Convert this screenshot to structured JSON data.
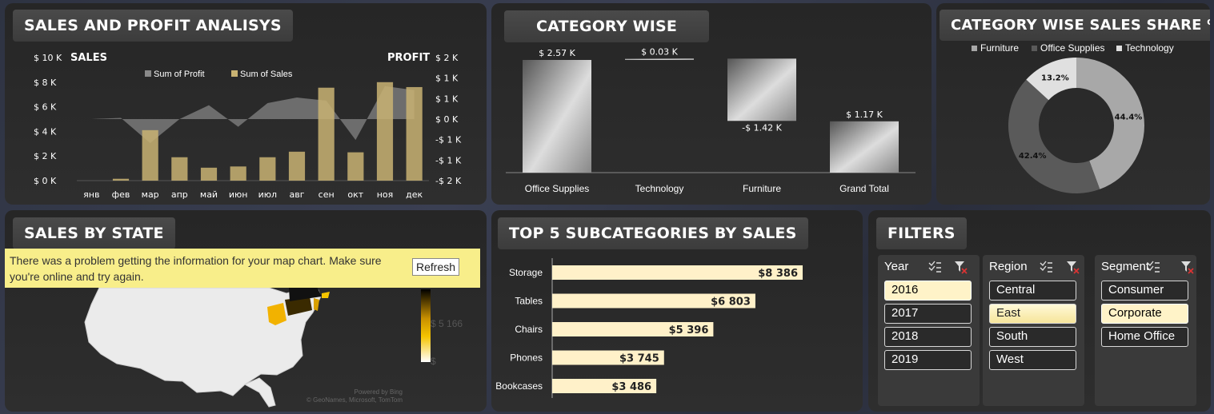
{
  "panels": {
    "sales_profit": {
      "title": "SALES AND PROFIT ANALISYS",
      "left_label": "SALES",
      "right_label": "PROFIT",
      "legend_profit": "Sum of Profit",
      "legend_sales": "Sum of Sales"
    },
    "category": {
      "title": "CATEGORY WISE",
      "labels": [
        "$ 2.57  K",
        "$ 0.03  K",
        "-$ 1.42  K",
        "$ 1.17  K"
      ]
    },
    "share": {
      "title": "CATEGORY WISE SALES SHARE %",
      "pct_labels": [
        "44.4%",
        "42.4%",
        "13.2%"
      ]
    },
    "state": {
      "title": "SALES BY STATE",
      "error_msg": "There was a problem getting the information for your map chart. Make sure you're online and try again.",
      "refresh_label": "Refresh",
      "legend_mid": "$ 5 166",
      "legend_low": "$",
      "powered_by": "Powered by Bing",
      "attribution": "© GeoNames, Microsoft, TomTom"
    },
    "top5": {
      "title": "TOP 5 SUBCATEGORIES BY SALES",
      "value_labels": [
        "$8 386",
        "$6 803",
        "$5 396",
        "$3 745",
        "$3 486"
      ]
    },
    "filters": {
      "title": "FILTERS",
      "year": {
        "header": "Year",
        "items": [
          "2016",
          "2017",
          "2018",
          "2019"
        ],
        "selected": "2016"
      },
      "region": {
        "header": "Region",
        "items": [
          "Central",
          "East",
          "South",
          "West"
        ],
        "selected": "East"
      },
      "segment": {
        "header": "Segment",
        "items": [
          "Consumer",
          "Corporate",
          "Home Office"
        ],
        "selected": "Corporate"
      }
    }
  },
  "chart_data": [
    {
      "type": "bar",
      "title": "SALES AND PROFIT ANALISYS",
      "categories": [
        "янв",
        "фев",
        "мар",
        "апр",
        "май",
        "июн",
        "июл",
        "авг",
        "сен",
        "окт",
        "ноя",
        "дек"
      ],
      "series": [
        {
          "name": "Sum of Sales",
          "type": "bar",
          "axis": "left",
          "values": [
            0,
            150,
            4100,
            1900,
            1050,
            1150,
            1900,
            2350,
            7550,
            2300,
            8000,
            7600
          ]
        },
        {
          "name": "Sum of Profit",
          "type": "area",
          "axis": "right",
          "values": [
            0,
            40,
            -780,
            0,
            450,
            -250,
            520,
            700,
            600,
            -680,
            1070,
            940
          ]
        }
      ],
      "ylabel": "SALES",
      "y2label": "PROFIT",
      "ylim": [
        0,
        10000
      ],
      "y_ticks": [
        "$ 0 K",
        "$ 2 K",
        "$ 4 K",
        "$ 6 K",
        "$ 8 K",
        "$ 10 K"
      ],
      "y2lim": [
        -2000,
        2000
      ],
      "y2_ticks": [
        "-$ 2 K",
        "-$ 1 K",
        "-$ 1 K",
        "$ 0 K",
        "$ 1 K",
        "$ 1 K",
        "$ 2 K"
      ],
      "legend": "top",
      "colors": {
        "sales": "#c9b373",
        "profit": "#8a8a8a"
      }
    },
    {
      "type": "bar",
      "title": "CATEGORY WISE",
      "subtype": "waterfall",
      "categories": [
        "Office Supplies",
        "Technology",
        "Furniture",
        "Grand Total"
      ],
      "values": [
        2570,
        30,
        -1420,
        1170
      ],
      "ylim": [
        -1500,
        3000
      ]
    },
    {
      "type": "pie",
      "title": "CATEGORY WISE SALES SHARE %",
      "subtype": "donut",
      "categories": [
        "Furniture",
        "Office Supplies",
        "Technology"
      ],
      "values": [
        44.4,
        42.4,
        13.2
      ],
      "colors": [
        "#a8a8a8",
        "#5a5a5a",
        "#e0e0e0"
      ],
      "legend": "top"
    },
    {
      "type": "bar",
      "title": "TOP 5 SUBCATEGORIES BY SALES",
      "orientation": "horizontal",
      "categories": [
        "Storage",
        "Tables",
        "Chairs",
        "Phones",
        "Bookcases"
      ],
      "values": [
        8386,
        6803,
        5396,
        3745,
        3486
      ],
      "colors": {
        "bar": "#fff1c9"
      }
    }
  ]
}
